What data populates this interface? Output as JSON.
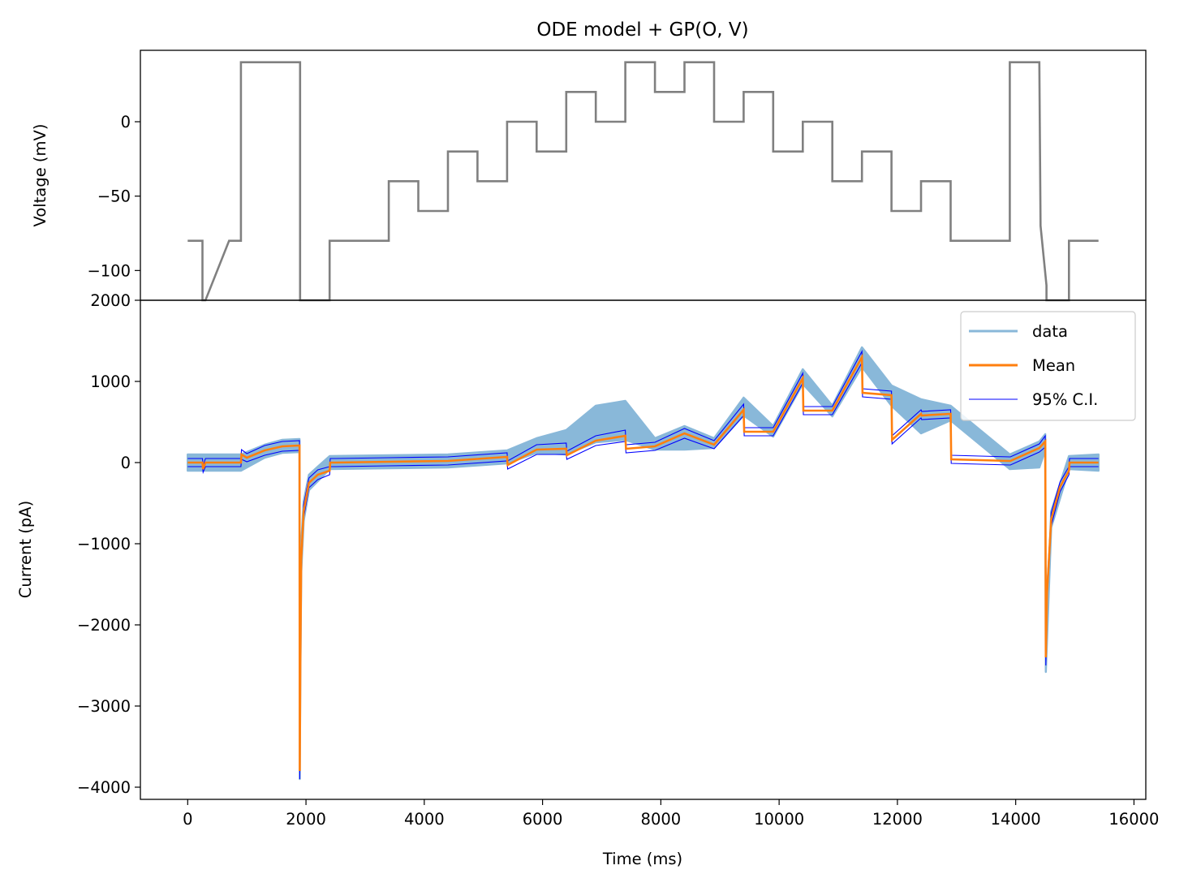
{
  "figure": {
    "title": "ODE model + GP(O, V)"
  },
  "chart_data": [
    {
      "type": "line",
      "panel": "voltage",
      "title": "ODE model + GP(O, V)",
      "xlabel": "",
      "ylabel": "Voltage (mV)",
      "xlim": [
        -800,
        16200
      ],
      "ylim": [
        -120,
        48
      ],
      "xticks_shown": false,
      "yticks": [
        0,
        -50,
        -100
      ],
      "ytick_labels": [
        "0",
        "−50",
        "−100"
      ],
      "grid": false,
      "color": "#808080",
      "series": [
        {
          "x": [
            0,
            250,
            250,
            300,
            700,
            900,
            900,
            1900,
            1900,
            2400,
            2400,
            3400,
            3400,
            3900,
            3900,
            4400,
            4400,
            4900,
            4900,
            5400,
            5400,
            5900,
            5900,
            6400,
            6400,
            6900,
            6900,
            7400,
            7400,
            7900,
            7900,
            8400,
            8400,
            8900,
            8900,
            9400,
            9400,
            9900,
            9900,
            10400,
            10400,
            10900,
            10900,
            11400,
            11400,
            11900,
            11900,
            12400,
            12400,
            12900,
            12900,
            13900,
            13900,
            14400,
            14420,
            14520,
            14520,
            14900,
            14900,
            15400
          ],
          "values": [
            -80,
            -80,
            -120,
            -120,
            -80,
            -80,
            40,
            40,
            -120,
            -120,
            -80,
            -80,
            -40,
            -40,
            -60,
            -60,
            -20,
            -20,
            -40,
            -40,
            0,
            0,
            -20,
            -20,
            20,
            20,
            0,
            0,
            40,
            40,
            20,
            20,
            40,
            40,
            0,
            0,
            20,
            20,
            -20,
            -20,
            0,
            0,
            -40,
            -40,
            -20,
            -20,
            -60,
            -60,
            -40,
            -40,
            -80,
            -80,
            40,
            40,
            -70,
            -110,
            -120,
            -120,
            -80,
            -80
          ]
        }
      ]
    },
    {
      "type": "line",
      "panel": "current",
      "xlabel": "Time (ms)",
      "ylabel": "Current (pA)",
      "xlim": [
        -800,
        16200
      ],
      "ylim": [
        -4150,
        2000
      ],
      "xticks": [
        0,
        2000,
        4000,
        6000,
        8000,
        10000,
        12000,
        14000,
        16000
      ],
      "xtick_labels": [
        "0",
        "2000",
        "4000",
        "6000",
        "8000",
        "10000",
        "12000",
        "14000",
        "16000"
      ],
      "yticks": [
        2000,
        1000,
        0,
        -1000,
        -2000,
        -3000,
        -4000
      ],
      "ytick_labels": [
        "2000",
        "1000",
        "0",
        "−1000",
        "−2000",
        "−3000",
        "−4000"
      ],
      "grid": false,
      "legend": {
        "placement": "top-right",
        "entries": [
          {
            "label": "data",
            "color": "#89b8d9"
          },
          {
            "label": "Mean",
            "color": "#ff7f0e"
          },
          {
            "label": "95% C.I.",
            "color": "#0000ff"
          }
        ]
      },
      "series": [
        {
          "name": "Mean",
          "color": "#ff7f0e",
          "x": [
            0,
            250,
            260,
            300,
            900,
            910,
            1000,
            1300,
            1600,
            1890,
            1895,
            1905,
            1920,
            1960,
            2050,
            2200,
            2400,
            2410,
            2500,
            3400,
            4400,
            5400,
            5410,
            5900,
            6400,
            6410,
            6900,
            7400,
            7410,
            7900,
            8400,
            8900,
            9400,
            9410,
            9900,
            10400,
            10410,
            10900,
            11400,
            11410,
            11900,
            11910,
            12400,
            12410,
            12900,
            12910,
            13900,
            13910,
            14400,
            14500,
            14510,
            14530,
            14600,
            14750,
            14900,
            14910,
            15400
          ],
          "values": [
            0,
            0,
            -80,
            0,
            0,
            100,
            60,
            150,
            200,
            210,
            -3800,
            -2500,
            -1200,
            -600,
            -250,
            -150,
            -100,
            0,
            0,
            10,
            20,
            70,
            -30,
            160,
            170,
            90,
            270,
            330,
            170,
            200,
            360,
            220,
            650,
            380,
            380,
            1040,
            640,
            640,
            1300,
            860,
            830,
            280,
            600,
            580,
            600,
            40,
            20,
            20,
            180,
            260,
            -2400,
            -1600,
            -700,
            -300,
            -100,
            0,
            0
          ]
        },
        {
          "name": "95% C.I.",
          "color": "#0000ff",
          "x": [
            0,
            250,
            260,
            300,
            900,
            910,
            1000,
            1300,
            1600,
            1890,
            1895,
            1905,
            1920,
            1960,
            2050,
            2200,
            2400,
            2410,
            2500,
            3400,
            4400,
            5400,
            5410,
            5900,
            6400,
            6410,
            6900,
            7400,
            7410,
            7900,
            8400,
            8900,
            9400,
            9410,
            9900,
            10400,
            10410,
            10900,
            11400,
            11410,
            11900,
            11910,
            12400,
            12410,
            12900,
            12910,
            13900,
            13910,
            14400,
            14500,
            14510,
            14530,
            14600,
            14750,
            14900,
            14910,
            15400
          ],
          "upper": [
            50,
            50,
            -40,
            50,
            50,
            160,
            110,
            210,
            260,
            270,
            -3700,
            -2400,
            -1100,
            -520,
            -190,
            -90,
            -50,
            50,
            50,
            60,
            70,
            120,
            20,
            220,
            240,
            140,
            330,
            400,
            220,
            250,
            420,
            270,
            720,
            430,
            430,
            1100,
            690,
            690,
            1370,
            910,
            880,
            330,
            650,
            630,
            650,
            90,
            70,
            70,
            230,
            330,
            -2300,
            -1500,
            -620,
            -240,
            -50,
            50,
            50
          ],
          "lower": [
            -50,
            -50,
            -120,
            -50,
            -50,
            40,
            10,
            90,
            140,
            150,
            -3900,
            -2600,
            -1300,
            -680,
            -310,
            -210,
            -150,
            -50,
            -50,
            -40,
            -30,
            20,
            -80,
            100,
            100,
            40,
            210,
            260,
            120,
            150,
            300,
            170,
            580,
            330,
            330,
            980,
            590,
            590,
            1230,
            810,
            780,
            230,
            550,
            530,
            550,
            -10,
            -30,
            -30,
            130,
            190,
            -2500,
            -1700,
            -780,
            -360,
            -150,
            -50,
            -50
          ]
        },
        {
          "name": "data",
          "color": "#89b8d9",
          "x": [
            0,
            250,
            300,
            900,
            1300,
            1600,
            1890,
            1895,
            1905,
            1920,
            1960,
            2050,
            2200,
            2400,
            3400,
            4400,
            5400,
            5900,
            6400,
            6900,
            7400,
            7900,
            8400,
            8900,
            9400,
            9900,
            10400,
            10900,
            11400,
            11900,
            12400,
            12900,
            13900,
            14400,
            14500,
            14510,
            14600,
            14900,
            15400
          ],
          "upper": [
            100,
            100,
            100,
            100,
            220,
            280,
            290,
            -3700,
            -2300,
            -1000,
            -480,
            -150,
            -50,
            80,
            90,
            100,
            150,
            300,
            400,
            700,
            760,
            300,
            450,
            300,
            800,
            450,
            1150,
            700,
            1420,
            950,
            780,
            700,
            100,
            260,
            350,
            -2350,
            -600,
            80,
            100
          ],
          "lower": [
            -100,
            -100,
            -100,
            -100,
            60,
            120,
            130,
            -3900,
            -2650,
            -1350,
            -720,
            -340,
            -230,
            -80,
            -70,
            -60,
            -10,
            120,
            100,
            250,
            280,
            160,
            160,
            180,
            580,
            320,
            970,
            570,
            1180,
            700,
            360,
            520,
            -80,
            -60,
            150,
            -2580,
            -800,
            -80,
            -100
          ]
        }
      ]
    }
  ]
}
